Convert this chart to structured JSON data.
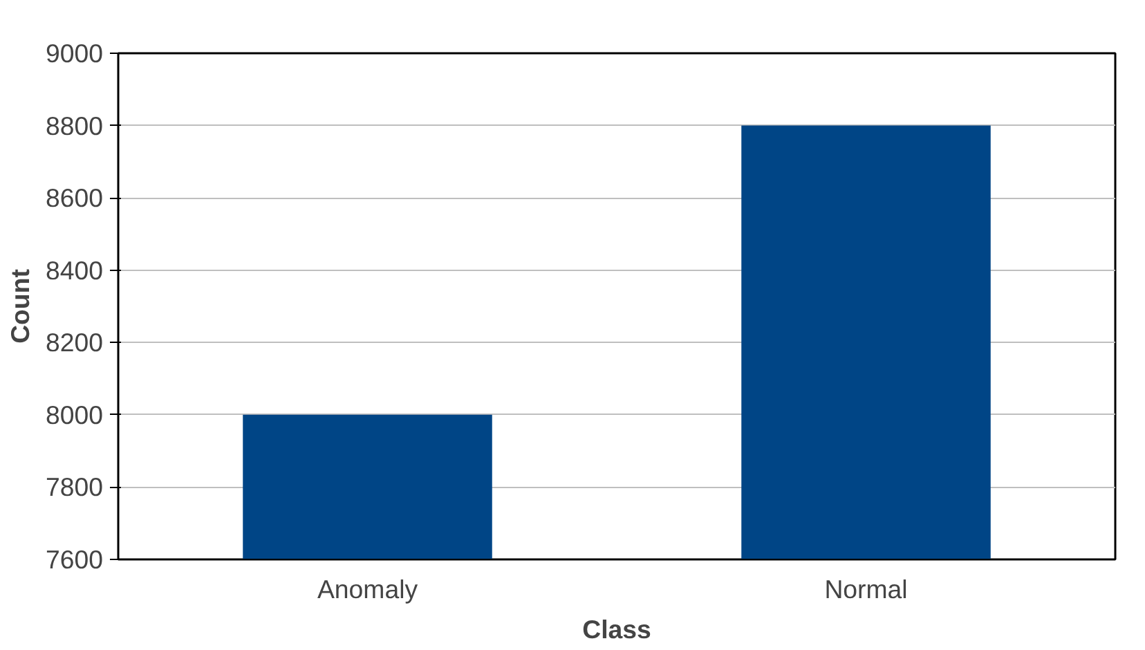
{
  "chart_data": {
    "type": "bar",
    "xlabel": "Class",
    "ylabel": "Count",
    "categories": [
      "Anomaly",
      "Normal"
    ],
    "values": [
      8000,
      8800
    ],
    "color": "#004586",
    "ylim": [
      7600,
      9000
    ],
    "yticks": [
      7600,
      7800,
      8000,
      8200,
      8400,
      8600,
      8800,
      9000
    ],
    "grid": "y"
  }
}
